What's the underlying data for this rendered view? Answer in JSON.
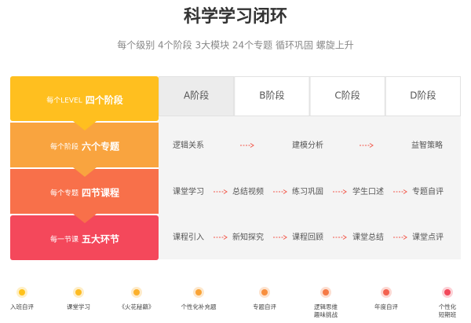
{
  "header": {
    "title": "科学学习闭环",
    "subtitle": "每个级别 4个阶段 3大模块 24个专题 循环巩固 螺旋上升"
  },
  "levels": [
    {
      "prefix": "每个LEVEL",
      "label": "四个阶段"
    },
    {
      "prefix": "每个阶段",
      "label": "六个专题"
    },
    {
      "prefix": "每个专题",
      "label": "四节课程"
    },
    {
      "prefix": "每一节课",
      "label": "五大环节"
    }
  ],
  "tabs": [
    "A阶段",
    "B阶段",
    "C阶段",
    "D阶段"
  ],
  "rows": [
    [
      "逻辑关系",
      "建模分析",
      "益智策略"
    ],
    [
      "课堂学习",
      "总结视频",
      "练习巩固",
      "学生口述",
      "专题自评"
    ],
    [
      "课程引入",
      "新知探究",
      "课程回顾",
      "课堂总结",
      "课堂点评"
    ]
  ],
  "timeline": [
    [
      "入班自评"
    ],
    [
      "课堂学习"
    ],
    [
      "《火花秘籍》"
    ],
    [
      "个性化补充题"
    ],
    [
      "专题自评"
    ],
    [
      "逻辑思维",
      "趣味挑战"
    ],
    [
      "年度自评"
    ],
    [
      "个性化",
      "短期班"
    ]
  ]
}
